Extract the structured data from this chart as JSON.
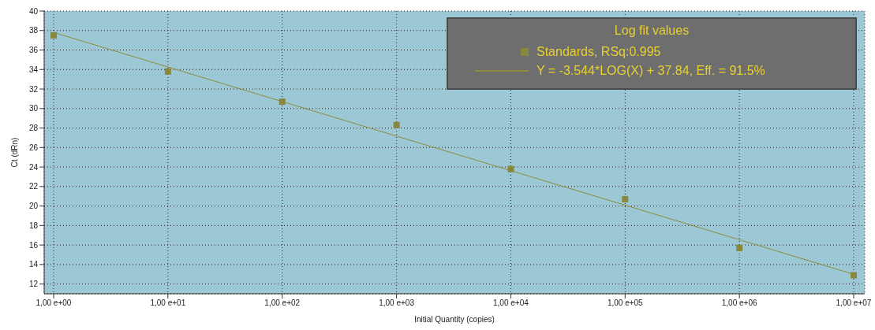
{
  "chart_data": {
    "type": "scatter",
    "xlabel": "Initial Quantity (copies)",
    "ylabel": "Ct (dRn)",
    "legend_title": "Log fit values",
    "grid": true,
    "legend": "top right",
    "marker": "square",
    "categories": [
      "1,00 e+00",
      "1,00 e+01",
      "1,00 e+02",
      "1,00 e+03",
      "1,00 e+04",
      "1,00 e+05",
      "1,00 e+06",
      "1,00 e+07"
    ],
    "ylim": [
      11,
      40
    ],
    "yticks": [
      12,
      14,
      16,
      18,
      20,
      22,
      24,
      26,
      28,
      30,
      32,
      34,
      36,
      38,
      40
    ],
    "series": [
      {
        "name": "Standards, RSq:0.995",
        "color": "#88883c",
        "values": [
          37.5,
          33.8,
          30.7,
          28.3,
          23.8,
          20.7,
          15.7,
          12.9
        ]
      },
      {
        "type": "line",
        "name": "Y = -3.544*LOG(X) + 37.84, Eff. = 91.5%",
        "color": "#8c8c3c",
        "line_style": "solid",
        "marker": "none",
        "x": [
          "1,00 e+00",
          "1,00 e+07"
        ],
        "values": [
          37.8,
          13.0
        ]
      }
    ]
  }
}
